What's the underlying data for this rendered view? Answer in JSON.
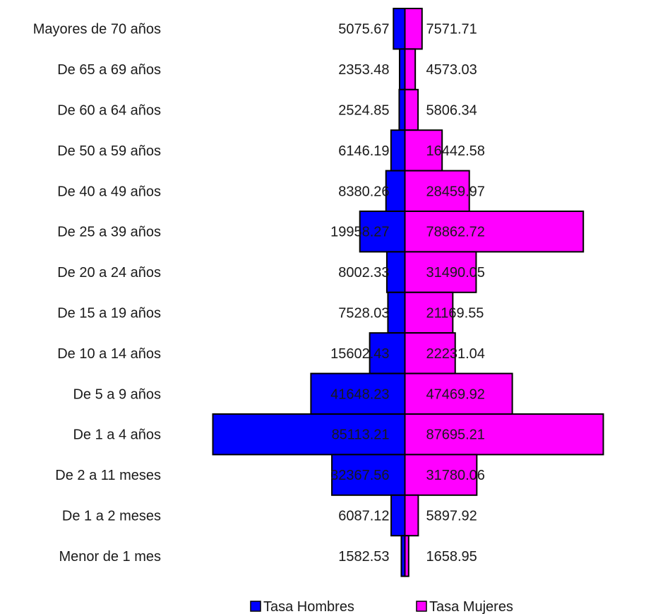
{
  "chart_data": {
    "type": "bar",
    "orientation": "horizontal-diverging",
    "categories": [
      "Mayores de 70 años",
      "De 65 a 69 años",
      "De 60 a 64 años",
      "De 50 a 59 años",
      "De 40 a 49 años",
      "De 25 a 39 años",
      "De 20 a 24 años",
      "De 15 a 19 años",
      "De 10 a 14 años",
      "De 5 a 9 años",
      "De 1 a 4 años",
      "De 2 a 11 meses",
      "De 1 a 2 meses",
      "Menor de 1 mes"
    ],
    "series": [
      {
        "name": "Tasa Hombres",
        "side": "left",
        "color": "#0000ff",
        "values": [
          5075.67,
          2353.48,
          2524.85,
          6146.19,
          8380.26,
          19958.27,
          8002.33,
          7528.03,
          15602.43,
          41648.23,
          85113.21,
          32367.56,
          6087.12,
          1582.53
        ],
        "labels": [
          "5075.67",
          "2353.48",
          "2524.85",
          "6146.19",
          "8380.26",
          "19958.27",
          "8002.33",
          "7528.03",
          "15602.43",
          "41648.23",
          "85113.21",
          "32367.56",
          "6087.12",
          "1582.53"
        ]
      },
      {
        "name": "Tasa Mujeres",
        "side": "right",
        "color": "#ff00ff",
        "values": [
          7571.71,
          4573.03,
          5806.34,
          16442.58,
          28459.97,
          78862.72,
          31490.05,
          21169.55,
          22231.04,
          47469.92,
          87695.21,
          31780.06,
          5897.92,
          1658.95
        ],
        "labels": [
          "7571.71",
          "4573.03",
          "5806.34",
          "16442.58",
          "28459.97",
          "78862.72",
          "31490.05",
          "21169.55",
          "22231.04",
          "47469.92",
          "87695.21",
          "31780.06",
          "5897.92",
          "1658.95"
        ]
      }
    ],
    "title": "",
    "xlabel": "",
    "ylabel": "",
    "grid": false,
    "legend_position": "bottom"
  }
}
